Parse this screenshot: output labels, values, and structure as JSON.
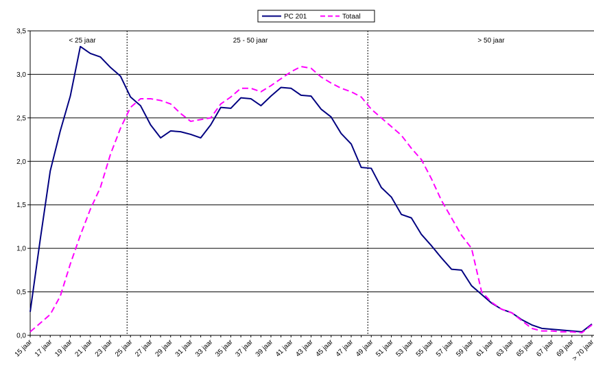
{
  "chart_data": {
    "type": "line",
    "categories": [
      "15 jaar",
      null,
      "17 jaar",
      null,
      "19 jaar",
      null,
      "21 jaar",
      null,
      "23 jaar",
      null,
      "25 jaar",
      null,
      "27 jaar",
      null,
      "29 jaar",
      null,
      "31 jaar",
      null,
      "33 jaar",
      null,
      "35 jaar",
      null,
      "37 jaar",
      null,
      "39 jaar",
      null,
      "41 jaar",
      null,
      "43 jaar",
      null,
      "45 jaar",
      null,
      "47 jaar",
      null,
      "49 jaar",
      null,
      "51 jaar",
      null,
      "53 jaar",
      null,
      "55 jaar",
      null,
      "57 jaar",
      null,
      "59 jaar",
      null,
      "61 jaar",
      null,
      "63 jaar",
      null,
      "65 jaar",
      null,
      "67 jaar",
      null,
      "69 jaar",
      null,
      "> 70 jaar"
    ],
    "series": [
      {
        "name": "PC 201",
        "color": "#000080",
        "dash": false,
        "values": [
          0.27,
          1.1,
          1.89,
          2.35,
          2.75,
          3.32,
          3.24,
          3.2,
          3.08,
          2.98,
          2.74,
          2.64,
          2.42,
          2.27,
          2.35,
          2.34,
          2.31,
          2.27,
          2.42,
          2.62,
          2.61,
          2.73,
          2.72,
          2.64,
          2.75,
          2.85,
          2.84,
          2.76,
          2.75,
          2.6,
          2.51,
          2.32,
          2.2,
          1.93,
          1.92,
          1.7,
          1.59,
          1.39,
          1.35,
          1.16,
          1.03,
          0.89,
          0.76,
          0.75,
          0.57,
          0.47,
          0.37,
          0.3,
          0.26,
          0.18,
          0.12,
          0.08,
          0.07,
          0.06,
          0.05,
          0.04,
          0.13
        ]
      },
      {
        "name": "Totaal",
        "color": "#ff00ff",
        "dash": true,
        "values": [
          0.04,
          0.14,
          0.24,
          0.45,
          0.82,
          1.15,
          1.45,
          1.7,
          2.08,
          2.38,
          2.62,
          2.72,
          2.72,
          2.7,
          2.66,
          2.55,
          2.46,
          2.48,
          2.5,
          2.66,
          2.74,
          2.84,
          2.84,
          2.8,
          2.87,
          2.95,
          3.03,
          3.09,
          3.07,
          2.97,
          2.9,
          2.84,
          2.8,
          2.74,
          2.6,
          2.5,
          2.4,
          2.3,
          2.15,
          2.02,
          1.8,
          1.55,
          1.35,
          1.15,
          1.0,
          0.5,
          0.38,
          0.3,
          0.26,
          0.17,
          0.08,
          0.05,
          0.05,
          0.04,
          0.04,
          0.03,
          0.12
        ]
      }
    ],
    "annotations": [
      "< 25 jaar",
      "25 - 50 jaar",
      "> 50 jaar"
    ],
    "ylim": [
      0,
      3.5
    ],
    "yticks": [
      {
        "value": 0,
        "label": "0,0"
      },
      {
        "value": 0.5,
        "label": "0,5"
      },
      {
        "value": 1,
        "label": "1,0"
      },
      {
        "value": 1.5,
        "label": "1,5"
      },
      {
        "value": 2,
        "label": "2,0"
      },
      {
        "value": 2.5,
        "label": "2,5"
      },
      {
        "value": 3,
        "label": "3,0"
      },
      {
        "value": 3.5,
        "label": "3,5"
      }
    ],
    "grid": true,
    "legend": "top"
  }
}
